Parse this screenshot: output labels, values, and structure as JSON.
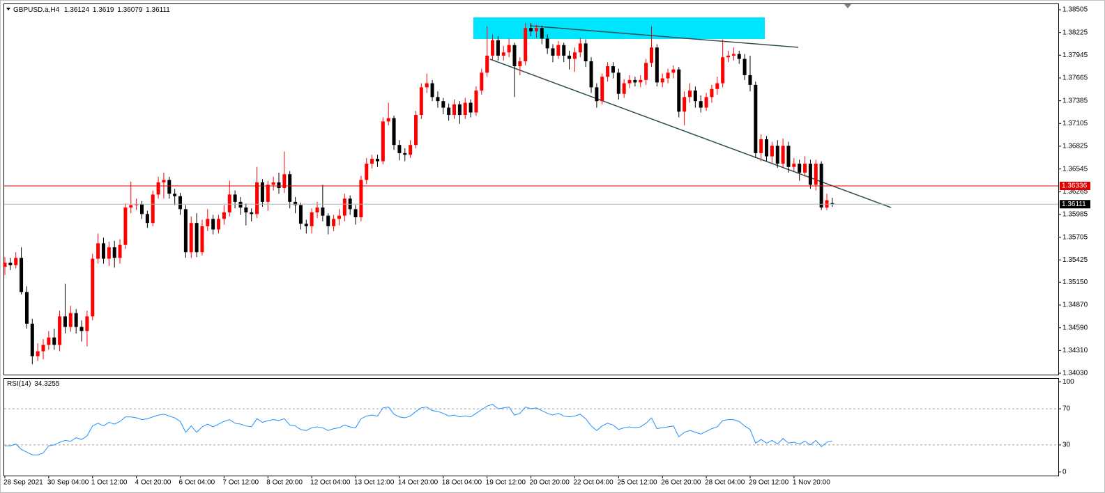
{
  "chart_data": [
    {
      "type": "candlestick",
      "title": "GBPUSD.a,H4",
      "categories": [
        "28 Sep 2021",
        null,
        null,
        null,
        null,
        null,
        null,
        null,
        "30 Sep 04:00",
        null,
        null,
        null,
        null,
        null,
        null,
        null,
        "1 Oct 12:00",
        null,
        null,
        null,
        null,
        null,
        null,
        null,
        "4 Oct 20:00",
        null,
        null,
        null,
        null,
        null,
        null,
        null,
        "6 Oct 04:00",
        null,
        null,
        null,
        null,
        null,
        null,
        null,
        "7 Oct 12:00",
        null,
        null,
        null,
        null,
        null,
        null,
        null,
        "8 Oct 20:00",
        null,
        null,
        null,
        null,
        null,
        null,
        null,
        "12 Oct 04:00",
        null,
        null,
        null,
        null,
        null,
        null,
        null,
        "13 Oct 12:00",
        null,
        null,
        null,
        null,
        null,
        null,
        null,
        "14 Oct 20:00",
        null,
        null,
        null,
        null,
        null,
        null,
        null,
        "18 Oct 04:00",
        null,
        null,
        null,
        null,
        null,
        null,
        null,
        "19 Oct 12:00",
        null,
        null,
        null,
        null,
        null,
        null,
        null,
        "20 Oct 20:00",
        null,
        null,
        null,
        null,
        null,
        null,
        null,
        "22 Oct 04:00",
        null,
        null,
        null,
        null,
        null,
        null,
        null,
        "25 Oct 12:00",
        null,
        null,
        null,
        null,
        null,
        null,
        null,
        "26 Oct 20:00",
        null,
        null,
        null,
        null,
        null,
        null,
        null,
        "28 Oct 04:00",
        null,
        null,
        null,
        null,
        null,
        null,
        null,
        "29 Oct 12:00",
        null,
        null,
        null,
        null,
        null,
        null,
        null,
        "1 Nov 20:00",
        null,
        null,
        null,
        null,
        null,
        null,
        null
      ],
      "open": [
        1.3534,
        1.3539,
        1.3536,
        1.3545,
        1.3503,
        1.3464,
        1.3424,
        1.343,
        1.3438,
        1.3447,
        1.3438,
        1.3473,
        1.346,
        1.3477,
        1.346,
        1.3455,
        1.3473,
        1.3544,
        1.3563,
        1.3544,
        1.3558,
        1.3545,
        1.3561,
        1.3607,
        1.361,
        1.3611,
        1.3599,
        1.3588,
        1.3623,
        1.3638,
        1.3641,
        1.3624,
        1.3621,
        1.3605,
        1.3552,
        1.3588,
        1.3552,
        1.3584,
        1.3593,
        1.358,
        1.3593,
        1.3601,
        1.3623,
        1.3614,
        1.3607,
        1.3601,
        1.3599,
        1.3638,
        1.3614,
        1.3635,
        1.3638,
        1.3631,
        1.3648,
        1.3614,
        1.361,
        1.3587,
        1.3584,
        1.3601,
        1.3607,
        1.3597,
        1.3584,
        1.3593,
        1.3597,
        1.3618,
        1.3605,
        1.3595,
        1.3641,
        1.3661,
        1.3667,
        1.3664,
        1.3713,
        1.3717,
        1.3684,
        1.3674,
        1.3672,
        1.3684,
        1.3721,
        1.3755,
        1.376,
        1.3743,
        1.3738,
        1.373,
        1.3721,
        1.3734,
        1.3721,
        1.3736,
        1.3724,
        1.3751,
        1.3773,
        1.3794,
        1.3813,
        1.3794,
        1.3798,
        1.3807,
        1.3781,
        1.3787,
        1.3828,
        1.3824,
        1.3828,
        1.3815,
        1.3803,
        1.3794,
        1.3807,
        1.3794,
        1.379,
        1.3798,
        1.3809,
        1.3787,
        1.3755,
        1.3738,
        1.3768,
        1.3781,
        1.3773,
        1.3747,
        1.376,
        1.3764,
        1.3761,
        1.3764,
        1.3785,
        1.3804,
        1.3761,
        1.3766,
        1.3773,
        1.3777,
        1.3725,
        1.3743,
        1.3751,
        1.3738,
        1.373,
        1.3743,
        1.3753,
        1.376,
        1.3792,
        1.3794,
        1.3796,
        1.379,
        1.377,
        1.3758,
        1.3674,
        1.3691,
        1.367,
        1.3683,
        1.3661,
        1.3683,
        1.3657,
        1.3661,
        1.365,
        1.3661,
        1.3635,
        1.3661,
        1.3607,
        1.36124
      ],
      "high": [
        1.3546,
        1.3545,
        1.3552,
        1.3558,
        1.351,
        1.347,
        1.344,
        1.3445,
        1.3455,
        1.3458,
        1.348,
        1.3513,
        1.3486,
        1.3482,
        1.3468,
        1.348,
        1.355,
        1.3575,
        1.357,
        1.3565,
        1.3566,
        1.3568,
        1.3612,
        1.3639,
        1.3618,
        1.3615,
        1.3603,
        1.3628,
        1.3645,
        1.365,
        1.3645,
        1.363,
        1.3625,
        1.361,
        1.3596,
        1.36,
        1.3592,
        1.3605,
        1.3598,
        1.3598,
        1.361,
        1.364,
        1.3628,
        1.362,
        1.3612,
        1.3606,
        1.3657,
        1.3642,
        1.364,
        1.3645,
        1.365,
        1.3676,
        1.3652,
        1.362,
        1.3613,
        1.3592,
        1.3606,
        1.3614,
        1.3635,
        1.36,
        1.3598,
        1.3605,
        1.3624,
        1.3622,
        1.361,
        1.3646,
        1.3668,
        1.3672,
        1.3672,
        1.3718,
        1.3736,
        1.372,
        1.369,
        1.368,
        1.369,
        1.3726,
        1.376,
        1.3772,
        1.3764,
        1.375,
        1.3742,
        1.3735,
        1.374,
        1.3738,
        1.3742,
        1.374,
        1.3756,
        1.3778,
        1.383,
        1.382,
        1.3818,
        1.3806,
        1.3815,
        1.381,
        1.3792,
        1.3834,
        1.3834,
        1.3832,
        1.3831,
        1.382,
        1.3808,
        1.3812,
        1.381,
        1.38,
        1.3804,
        1.3816,
        1.3814,
        1.3792,
        1.376,
        1.3772,
        1.3786,
        1.3786,
        1.3778,
        1.3765,
        1.377,
        1.3768,
        1.377,
        1.379,
        1.383,
        1.3808,
        1.3772,
        1.3778,
        1.3782,
        1.378,
        1.375,
        1.376,
        1.3756,
        1.3745,
        1.3748,
        1.3758,
        1.3768,
        1.3814,
        1.38,
        1.3804,
        1.38,
        1.3796,
        1.3794,
        1.3762,
        1.3697,
        1.3695,
        1.3688,
        1.369,
        1.3692,
        1.3688,
        1.3668,
        1.3666,
        1.367,
        1.3666,
        1.3666,
        1.3664,
        1.3624,
        1.3619
      ],
      "low": [
        1.3524,
        1.353,
        1.3532,
        1.35,
        1.3458,
        1.3414,
        1.3418,
        1.342,
        1.3432,
        1.3432,
        1.343,
        1.3452,
        1.3454,
        1.3452,
        1.3442,
        1.3436,
        1.3468,
        1.3538,
        1.3538,
        1.3535,
        1.3533,
        1.3538,
        1.3556,
        1.36,
        1.3604,
        1.3593,
        1.3582,
        1.3584,
        1.3618,
        1.3618,
        1.3618,
        1.361,
        1.3598,
        1.3545,
        1.3545,
        1.3546,
        1.3548,
        1.3578,
        1.3574,
        1.3575,
        1.3586,
        1.3596,
        1.3606,
        1.3598,
        1.3585,
        1.359,
        1.3594,
        1.3608,
        1.3603,
        1.3628,
        1.3624,
        1.3625,
        1.3606,
        1.36,
        1.358,
        1.3575,
        1.3575,
        1.3594,
        1.359,
        1.3574,
        1.3578,
        1.3585,
        1.359,
        1.3598,
        1.3586,
        1.359,
        1.3636,
        1.3655,
        1.3657,
        1.366,
        1.3708,
        1.3678,
        1.3665,
        1.3664,
        1.3668,
        1.368,
        1.3716,
        1.3748,
        1.3738,
        1.373,
        1.3722,
        1.3714,
        1.3716,
        1.371,
        1.3716,
        1.3718,
        1.372,
        1.3746,
        1.3768,
        1.3788,
        1.3788,
        1.3788,
        1.3792,
        1.3743,
        1.377,
        1.3782,
        1.3818,
        1.3816,
        1.3808,
        1.3796,
        1.3786,
        1.379,
        1.3786,
        1.3777,
        1.3774,
        1.3792,
        1.378,
        1.3748,
        1.373,
        1.3734,
        1.3762,
        1.3766,
        1.374,
        1.3742,
        1.3754,
        1.3756,
        1.3755,
        1.3758,
        1.378,
        1.3756,
        1.3755,
        1.376,
        1.3766,
        1.3718,
        1.3708,
        1.3736,
        1.373,
        1.3724,
        1.3726,
        1.3736,
        1.3746,
        1.3755,
        1.3786,
        1.3788,
        1.3784,
        1.3764,
        1.375,
        1.3668,
        1.3664,
        1.3664,
        1.3662,
        1.3656,
        1.3656,
        1.365,
        1.3652,
        1.364,
        1.3645,
        1.363,
        1.3628,
        1.3604,
        1.3604,
        1.36079
      ],
      "close": [
        1.3539,
        1.3536,
        1.3545,
        1.3503,
        1.3464,
        1.3424,
        1.343,
        1.3438,
        1.3447,
        1.3438,
        1.3473,
        1.346,
        1.3477,
        1.346,
        1.3455,
        1.3473,
        1.3544,
        1.3563,
        1.3544,
        1.3558,
        1.3545,
        1.3561,
        1.3607,
        1.361,
        1.3611,
        1.3599,
        1.3588,
        1.3623,
        1.3638,
        1.3641,
        1.3624,
        1.3621,
        1.3605,
        1.3552,
        1.3588,
        1.3552,
        1.3584,
        1.3593,
        1.358,
        1.3593,
        1.3601,
        1.3623,
        1.3614,
        1.3607,
        1.3601,
        1.3599,
        1.3638,
        1.3614,
        1.3635,
        1.3638,
        1.3631,
        1.3648,
        1.3614,
        1.361,
        1.3587,
        1.3584,
        1.3601,
        1.3607,
        1.3597,
        1.3584,
        1.3593,
        1.3597,
        1.3618,
        1.3605,
        1.3595,
        1.3641,
        1.3661,
        1.3667,
        1.3664,
        1.3713,
        1.3717,
        1.3684,
        1.3674,
        1.3672,
        1.3684,
        1.3721,
        1.3755,
        1.376,
        1.3743,
        1.3738,
        1.373,
        1.3721,
        1.3734,
        1.3721,
        1.3736,
        1.3724,
        1.3751,
        1.3773,
        1.3794,
        1.3813,
        1.3794,
        1.3798,
        1.3807,
        1.3781,
        1.3787,
        1.3828,
        1.3824,
        1.3828,
        1.3815,
        1.3803,
        1.3794,
        1.3807,
        1.3794,
        1.379,
        1.3798,
        1.3809,
        1.3787,
        1.3755,
        1.3738,
        1.3768,
        1.3781,
        1.3773,
        1.3747,
        1.376,
        1.3764,
        1.3761,
        1.3764,
        1.3785,
        1.3804,
        1.3761,
        1.3766,
        1.3773,
        1.3777,
        1.3725,
        1.3743,
        1.3751,
        1.3738,
        1.373,
        1.3743,
        1.3753,
        1.376,
        1.3792,
        1.3794,
        1.3796,
        1.379,
        1.377,
        1.3758,
        1.3674,
        1.3691,
        1.367,
        1.3683,
        1.3661,
        1.3683,
        1.3657,
        1.3661,
        1.365,
        1.3661,
        1.3635,
        1.3661,
        1.3607,
        1.3616,
        1.36111
      ],
      "up_color": "#ff0000",
      "down_color": "#000000",
      "ylim": [
        1.34013,
        1.38582
      ],
      "yticks": [
        1.38505,
        1.38225,
        1.37945,
        1.37665,
        1.37385,
        1.37105,
        1.36825,
        1.36545,
        1.36265,
        1.35985,
        1.35705,
        1.35425,
        {
          "value": 1.3515,
          "label": "1.35150"
        },
        {
          "value": 1.3487,
          "label": "1.34870"
        },
        {
          "value": 1.3459,
          "label": "1.34590"
        },
        {
          "value": 1.3431,
          "label": "1.34310"
        },
        {
          "value": 1.3403,
          "label": "1.34030"
        }
      ],
      "hlines": [
        {
          "value": 1.36336,
          "color": "#e00000"
        }
      ],
      "current_price": 1.36111,
      "current_price_color": "#a8b4c0"
    },
    {
      "type": "line",
      "title": "RSI(14)",
      "color": "#1e90ff",
      "values": [
        29,
        29,
        31,
        25,
        22,
        19,
        19,
        21,
        29,
        30,
        33,
        35,
        34,
        38,
        36,
        40,
        51,
        54,
        51,
        55,
        53,
        56,
        61,
        61,
        60,
        58,
        59,
        61,
        63,
        64,
        62,
        60,
        56,
        44,
        51,
        44,
        50,
        53,
        50,
        53,
        56,
        58,
        54,
        53,
        51,
        50,
        59,
        55,
        57,
        58,
        57,
        59,
        52,
        51,
        47,
        46,
        49,
        50,
        49,
        46,
        48,
        49,
        52,
        50,
        49,
        59,
        62,
        63,
        62,
        71,
        72,
        64,
        61,
        60,
        62,
        67,
        71,
        72,
        68,
        67,
        65,
        62,
        63,
        61,
        62,
        61,
        65,
        69,
        73,
        75,
        70,
        71,
        72,
        63,
        65,
        72,
        70,
        71,
        68,
        65,
        63,
        65,
        62,
        61,
        62,
        64,
        59,
        51,
        46,
        51,
        54,
        52,
        47,
        49,
        50,
        49,
        50,
        54,
        60,
        48,
        49,
        50,
        51,
        39,
        44,
        46,
        44,
        42,
        45,
        48,
        50,
        57,
        58,
        58,
        56,
        51,
        47,
        32,
        36,
        32,
        35,
        31,
        37,
        32,
        33,
        31,
        34,
        30,
        35,
        28,
        33,
        34.3255
      ],
      "ylim": [
        -4,
        104
      ],
      "yticks": [
        100,
        70,
        30,
        0
      ],
      "levels": [
        70,
        30
      ]
    }
  ]
}
